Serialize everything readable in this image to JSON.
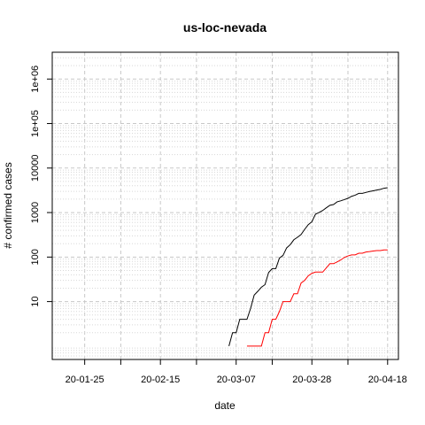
{
  "chart_data": {
    "type": "line",
    "title": "us-loc-nevada",
    "xlabel": "date",
    "ylabel": "# confirmed cases",
    "x_scale": "date",
    "y_scale": "log10",
    "xlim": [
      "2020-01-16",
      "2020-04-21"
    ],
    "ylim": [
      0.5,
      4000000
    ],
    "x_ticks": [
      "2020-01-25",
      "2020-02-04",
      "2020-02-15",
      "2020-02-25",
      "2020-03-07",
      "2020-03-17",
      "2020-03-28",
      "2020-04-07",
      "2020-04-18"
    ],
    "x_tick_labels": [
      "20-01-25",
      "",
      "20-02-15",
      "",
      "20-03-07",
      "",
      "20-03-28",
      "",
      "20-04-18"
    ],
    "y_ticks": [
      10,
      100,
      1000,
      10000,
      100000,
      1000000
    ],
    "y_tick_labels": [
      "10",
      "100",
      "1000",
      "10000",
      "1e+05",
      "1e+06"
    ],
    "grid": true,
    "series": [
      {
        "color": "#000000",
        "x": [
          "2020-03-05",
          "2020-03-06",
          "2020-03-07",
          "2020-03-08",
          "2020-03-09",
          "2020-03-10",
          "2020-03-11",
          "2020-03-12",
          "2020-03-13",
          "2020-03-14",
          "2020-03-15",
          "2020-03-16",
          "2020-03-17",
          "2020-03-18",
          "2020-03-19",
          "2020-03-20",
          "2020-03-21",
          "2020-03-22",
          "2020-03-23",
          "2020-03-24",
          "2020-03-25",
          "2020-03-26",
          "2020-03-27",
          "2020-03-28",
          "2020-03-29",
          "2020-03-30",
          "2020-03-31",
          "2020-04-01",
          "2020-04-02",
          "2020-04-03",
          "2020-04-04",
          "2020-04-05",
          "2020-04-06",
          "2020-04-07",
          "2020-04-08",
          "2020-04-09",
          "2020-04-10",
          "2020-04-11",
          "2020-04-12",
          "2020-04-13",
          "2020-04-14",
          "2020-04-15",
          "2020-04-16",
          "2020-04-17",
          "2020-04-18"
        ],
        "values": [
          1,
          2,
          2,
          4,
          4,
          4,
          7,
          14,
          17,
          21,
          24,
          45,
          55,
          55,
          95,
          109,
          161,
          190,
          245,
          278,
          321,
          420,
          535,
          621,
          920,
          1008,
          1113,
          1279,
          1458,
          1514,
          1742,
          1836,
          1953,
          2087,
          2318,
          2456,
          2700,
          2700,
          2836,
          2971,
          3088,
          3211,
          3321,
          3524,
          3626
        ]
      },
      {
        "color": "#ff0000",
        "x": [
          "2020-03-10",
          "2020-03-11",
          "2020-03-12",
          "2020-03-13",
          "2020-03-14",
          "2020-03-15",
          "2020-03-16",
          "2020-03-17",
          "2020-03-18",
          "2020-03-19",
          "2020-03-20",
          "2020-03-21",
          "2020-03-22",
          "2020-03-23",
          "2020-03-24",
          "2020-03-25",
          "2020-03-26",
          "2020-03-27",
          "2020-03-28",
          "2020-03-29",
          "2020-03-30",
          "2020-03-31",
          "2020-04-01",
          "2020-04-02",
          "2020-04-03",
          "2020-04-04",
          "2020-04-05",
          "2020-04-06",
          "2020-04-07",
          "2020-04-08",
          "2020-04-09",
          "2020-04-10",
          "2020-04-11",
          "2020-04-12",
          "2020-04-13",
          "2020-04-14",
          "2020-04-15",
          "2020-04-16",
          "2020-04-17",
          "2020-04-18"
        ],
        "values": [
          1,
          1,
          1,
          1,
          1,
          2,
          2,
          4,
          4,
          6,
          10,
          10,
          10,
          15,
          15,
          26,
          30,
          38,
          43,
          46,
          46,
          46,
          57,
          71,
          71,
          78,
          86,
          98,
          106,
          112,
          112,
          122,
          122,
          130,
          133,
          137,
          140,
          140,
          145,
          145
        ]
      }
    ]
  }
}
